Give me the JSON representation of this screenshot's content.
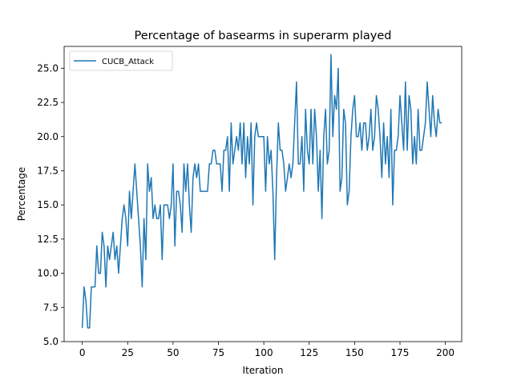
{
  "chart_data": {
    "type": "line",
    "title": "Percentage of basearms in superarm played",
    "xlabel": "Iteration",
    "ylabel": "Percentage",
    "xlim": [
      -10,
      209
    ],
    "ylim": [
      5.0,
      26.6
    ],
    "xticks": [
      0,
      25,
      50,
      75,
      100,
      125,
      150,
      175,
      200
    ],
    "yticks": [
      5.0,
      7.5,
      10.0,
      12.5,
      15.0,
      17.5,
      20.0,
      22.5,
      25.0
    ],
    "xtick_labels": [
      "0",
      "25",
      "50",
      "75",
      "100",
      "125",
      "150",
      "175",
      "200"
    ],
    "ytick_labels": [
      "5.0",
      "7.5",
      "10.0",
      "12.5",
      "15.0",
      "17.5",
      "20.0",
      "22.5",
      "25.0"
    ],
    "grid": false,
    "legend_position": "top-left",
    "series": [
      {
        "name": "CUCB_Attack",
        "color": "#1f77b4",
        "values": [
          6,
          9,
          8,
          6,
          6,
          9,
          9,
          9,
          12,
          10,
          10,
          13,
          12,
          9,
          12,
          11,
          12,
          13,
          11,
          12,
          10,
          12,
          14,
          15,
          14,
          12,
          16,
          14,
          16,
          18,
          16,
          14,
          12,
          9,
          14,
          11,
          18,
          16,
          17,
          14,
          15,
          14,
          14,
          15,
          11,
          15,
          15,
          15,
          14,
          15,
          18,
          12,
          16,
          16,
          15,
          13,
          18,
          16,
          18,
          15,
          13,
          17,
          18,
          17,
          18,
          16,
          16,
          16,
          16,
          16,
          18,
          18,
          19,
          19,
          18,
          18,
          18,
          16,
          19,
          19,
          20,
          16,
          21,
          18,
          19,
          20,
          19,
          21,
          18,
          21,
          17,
          20,
          18,
          21,
          15,
          20,
          21,
          20,
          20,
          20,
          20,
          16,
          20,
          18,
          19,
          16,
          11,
          17,
          21,
          19,
          19,
          18,
          16,
          17,
          18,
          17,
          18,
          21,
          24,
          18,
          18,
          20,
          16,
          22,
          19,
          18,
          22,
          18,
          22,
          20,
          16,
          19,
          14,
          20,
          22,
          18,
          19,
          26,
          20,
          23,
          22,
          25,
          16,
          17,
          22,
          21,
          15,
          16,
          20,
          22,
          23,
          20,
          20,
          21,
          19,
          21,
          21,
          19,
          20,
          22,
          19,
          20,
          23,
          22,
          20,
          17,
          21,
          18,
          20,
          17,
          22,
          15,
          19,
          19,
          20,
          23,
          21,
          19,
          24,
          19,
          23,
          22,
          18,
          20,
          18,
          22,
          19,
          19,
          20,
          21,
          24,
          22,
          20,
          23,
          21,
          20,
          22,
          21,
          21
        ]
      }
    ]
  }
}
